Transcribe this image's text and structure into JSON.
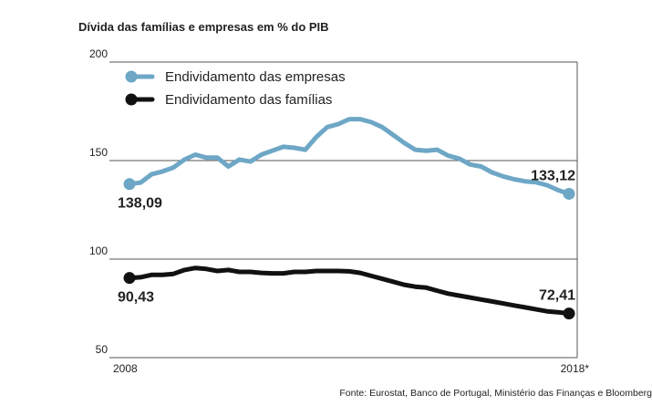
{
  "chart_data": {
    "type": "line",
    "title": "Dívida das famílias e empresas em % do PIB",
    "xlabel": "",
    "ylabel": "",
    "ylim": [
      50,
      200
    ],
    "y_ticks": [
      200,
      150,
      100,
      50
    ],
    "y_tick_labels": [
      "200",
      "150",
      "100",
      "50"
    ],
    "x_range": [
      2008,
      2018
    ],
    "x_tick_labels": [
      "2008",
      "2018*"
    ],
    "series": [
      {
        "name": "Endividamento das empresas",
        "color": "#6ea7c6",
        "x": [
          2008.0,
          2008.25,
          2008.5,
          2008.75,
          2009.0,
          2009.25,
          2009.5,
          2009.75,
          2010.0,
          2010.25,
          2010.5,
          2010.75,
          2011.0,
          2011.25,
          2011.5,
          2011.75,
          2012.0,
          2012.25,
          2012.5,
          2012.75,
          2013.0,
          2013.25,
          2013.5,
          2013.75,
          2014.0,
          2014.25,
          2014.5,
          2014.75,
          2015.0,
          2015.25,
          2015.5,
          2015.75,
          2016.0,
          2016.25,
          2016.5,
          2016.75,
          2017.0,
          2017.25,
          2017.5,
          2017.75,
          2018.0
        ],
        "values": [
          138.09,
          138.8,
          143.0,
          144.5,
          146.5,
          150.5,
          153.0,
          151.5,
          151.5,
          147.0,
          150.5,
          149.5,
          153.0,
          155.0,
          157.0,
          156.5,
          155.5,
          162.0,
          167.0,
          168.5,
          171.0,
          171.0,
          169.5,
          167.0,
          163.0,
          159.0,
          155.5,
          155.0,
          155.5,
          152.5,
          151.0,
          148.0,
          147.0,
          144.0,
          142.0,
          140.5,
          139.5,
          139.0,
          137.5,
          135.0,
          133.12
        ]
      },
      {
        "name": "Endividamento das famílias",
        "color": "#111111",
        "x": [
          2008.0,
          2008.25,
          2008.5,
          2008.75,
          2009.0,
          2009.25,
          2009.5,
          2009.75,
          2010.0,
          2010.25,
          2010.5,
          2010.75,
          2011.0,
          2011.25,
          2011.5,
          2011.75,
          2012.0,
          2012.25,
          2012.5,
          2012.75,
          2013.0,
          2013.25,
          2013.5,
          2013.75,
          2014.0,
          2014.25,
          2014.5,
          2014.75,
          2015.0,
          2015.25,
          2015.5,
          2015.75,
          2016.0,
          2016.25,
          2016.5,
          2016.75,
          2017.0,
          2017.25,
          2017.5,
          2017.75,
          2018.0
        ],
        "values": [
          90.43,
          90.8,
          92.0,
          92.0,
          92.5,
          94.5,
          95.5,
          95.0,
          94.0,
          94.5,
          93.5,
          93.5,
          93.0,
          92.8,
          92.8,
          93.5,
          93.5,
          94.0,
          94.0,
          94.0,
          93.8,
          93.0,
          91.5,
          90.0,
          88.5,
          87.0,
          86.0,
          85.5,
          84.0,
          82.5,
          81.5,
          80.5,
          79.5,
          78.5,
          77.5,
          76.5,
          75.5,
          74.5,
          73.5,
          73.0,
          72.41
        ]
      }
    ],
    "annotations": [
      {
        "series": 0,
        "point": "start",
        "text": "138,09"
      },
      {
        "series": 0,
        "point": "end",
        "text": "133,12"
      },
      {
        "series": 1,
        "point": "start",
        "text": "90,43"
      },
      {
        "series": 1,
        "point": "end",
        "text": "72,41"
      }
    ],
    "legend_position": "top-left",
    "grid": true,
    "source": "Fonte: Eurostat, Banco de Portugal, Ministério das Finanças e Bloomberg"
  }
}
